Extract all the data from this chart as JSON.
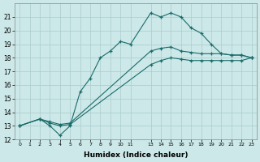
{
  "xlabel": "Humidex (Indice chaleur)",
  "background_color": "#cce8e8",
  "grid_color": "#aacccc",
  "line_color": "#1a6b6b",
  "xlim": [
    -0.5,
    23.5
  ],
  "ylim": [
    12,
    22
  ],
  "yticks": [
    12,
    13,
    14,
    15,
    16,
    17,
    18,
    19,
    20,
    21
  ],
  "xticks": [
    0,
    1,
    2,
    3,
    4,
    5,
    6,
    7,
    8,
    9,
    10,
    11,
    13,
    14,
    15,
    16,
    17,
    18,
    19,
    20,
    21,
    22,
    23
  ],
  "xtick_labels": [
    "0",
    "1",
    "2",
    "3",
    "4",
    "5",
    "6",
    "7",
    "8",
    "9",
    "10",
    "11",
    "13",
    "14",
    "15",
    "16",
    "17",
    "18",
    "19",
    "20",
    "21",
    "22",
    "23"
  ],
  "line1_x": [
    0,
    2,
    3,
    4,
    5,
    6,
    7,
    8,
    9,
    10,
    11,
    13,
    14,
    15,
    16,
    17,
    18,
    19,
    20,
    21,
    22,
    23
  ],
  "line1_y": [
    13,
    13.5,
    13,
    12.3,
    13,
    15.5,
    16.5,
    18,
    18.5,
    19.2,
    19,
    21.3,
    21,
    21.3,
    21,
    20.2,
    19.8,
    19,
    18.3,
    18.2,
    18.2,
    18
  ],
  "line2_x": [
    0,
    2,
    3,
    4,
    5,
    13,
    14,
    15,
    16,
    17,
    18,
    19,
    20,
    21,
    22,
    23
  ],
  "line2_y": [
    13,
    13.5,
    13.3,
    13.1,
    13.2,
    18.5,
    18.7,
    18.8,
    18.5,
    18.4,
    18.3,
    18.3,
    18.3,
    18.2,
    18.2,
    18
  ],
  "line3_x": [
    0,
    2,
    3,
    4,
    5,
    13,
    14,
    15,
    16,
    17,
    18,
    19,
    20,
    21,
    22,
    23
  ],
  "line3_y": [
    13,
    13.5,
    13.2,
    13.0,
    13.1,
    17.5,
    17.8,
    18.0,
    17.9,
    17.8,
    17.8,
    17.8,
    17.8,
    17.8,
    17.8,
    18
  ]
}
